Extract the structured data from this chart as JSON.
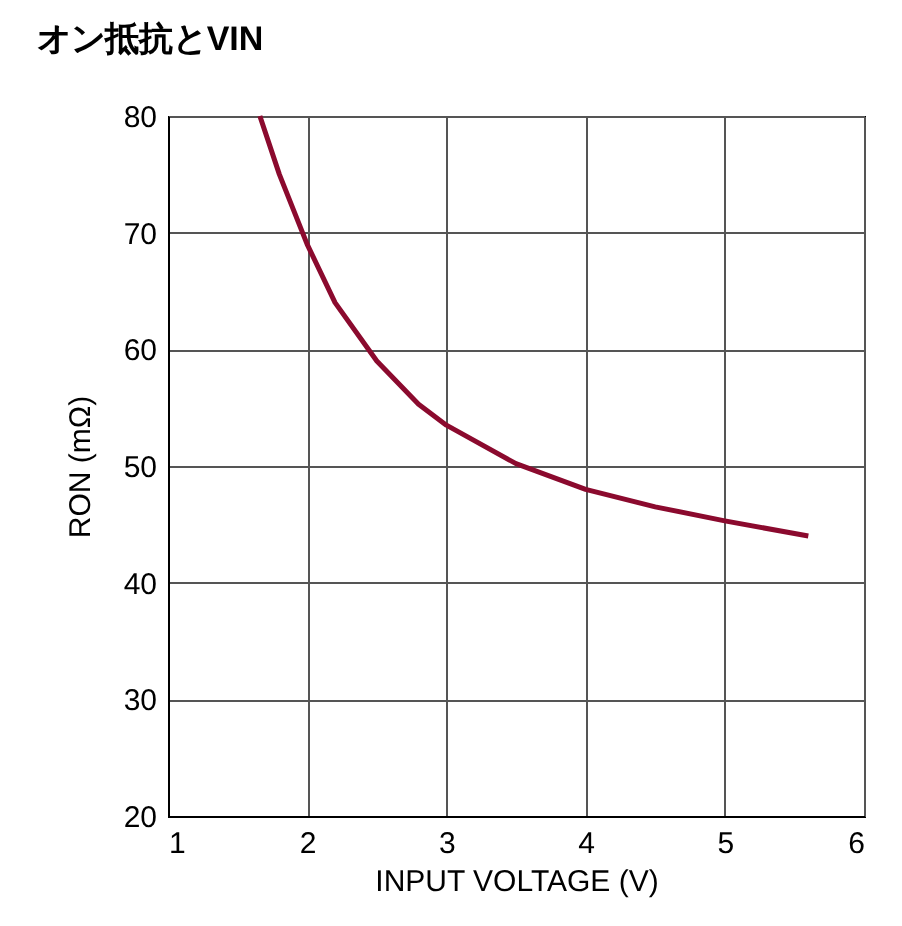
{
  "chart_data": {
    "type": "line",
    "title": "オン抵抗とVIN",
    "xlabel": "INPUT VOLTAGE (V)",
    "ylabel": "RON (mΩ)",
    "series": [
      {
        "color": "#8b0a2e",
        "x": [
          1.66,
          1.8,
          2.0,
          2.2,
          2.5,
          2.8,
          3.0,
          3.5,
          4.0,
          4.5,
          5.0,
          5.6
        ],
        "values": [
          80,
          75,
          69,
          64,
          59,
          55.3,
          53.5,
          50.2,
          48,
          46.5,
          45.3,
          44
        ]
      }
    ],
    "xlim": [
      1,
      6
    ],
    "xticks": [
      1,
      2,
      3,
      4,
      5,
      6
    ],
    "ylim": [
      20,
      80
    ],
    "yticks": [
      20,
      30,
      40,
      50,
      60,
      70,
      80
    ],
    "grid": true,
    "marker": "none",
    "line_style": "solid"
  }
}
